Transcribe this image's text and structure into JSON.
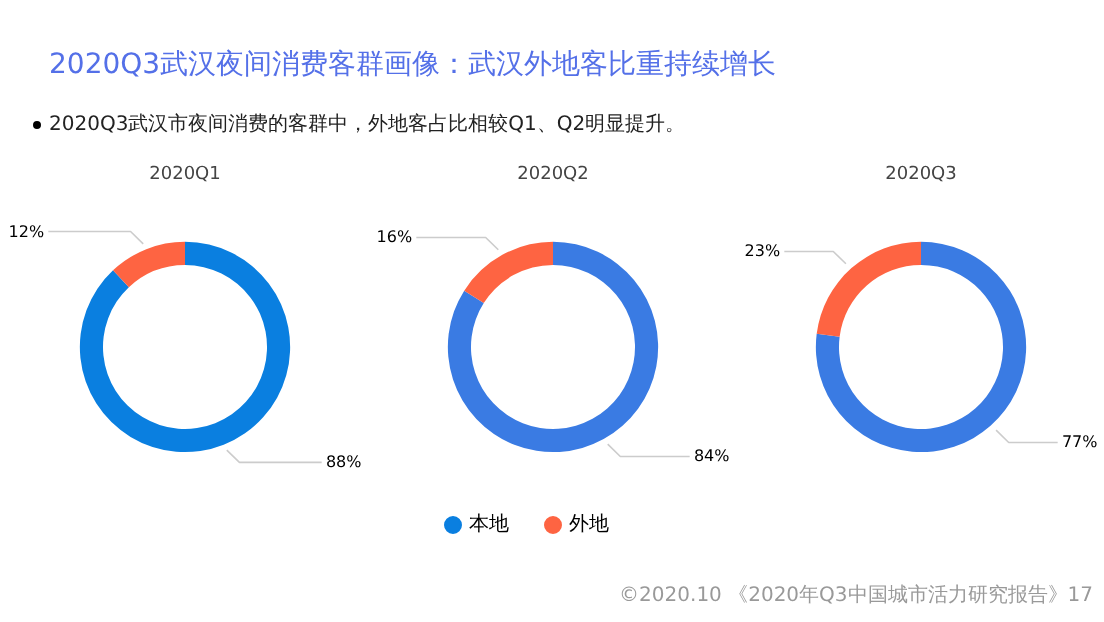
{
  "chart_data": [
    {
      "type": "other",
      "title": "2020Q3武汉夜间消费客群画像：武汉外地客比重持续增长",
      "annotations": [
        "2020Q3武汉市夜间消费的客群中，外地客占比相较Q1、Q2明显提升。"
      ]
    },
    {
      "type": "donut",
      "title": "2020Q1",
      "categories": [
        "本地",
        "外地"
      ],
      "values": [
        88,
        12
      ],
      "value_labels": [
        "88%",
        "12%"
      ],
      "colors": [
        "#0a7fe0",
        "#fe6442"
      ],
      "legend": "bottom"
    },
    {
      "type": "donut",
      "title": "2020Q2",
      "values": [
        84,
        16
      ],
      "value_labels": [
        "84%",
        "16%"
      ],
      "colors": [
        "#3a7be3",
        "#fe6442"
      ]
    },
    {
      "type": "donut",
      "title": "2020Q3",
      "values": [
        77,
        23
      ],
      "value_labels": [
        "77%",
        "23%"
      ],
      "colors": [
        "#3a7be3",
        "#fe6442"
      ]
    },
    {
      "type": "other",
      "annotations": [
        "©2020.10 《2020年Q3中国城市活力研究报告》17"
      ]
    }
  ]
}
